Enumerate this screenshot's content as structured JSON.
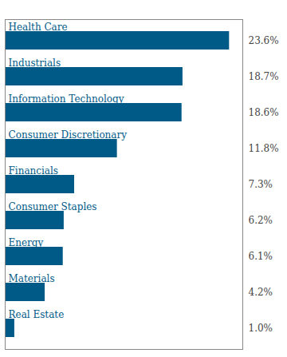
{
  "chart_data": {
    "type": "bar",
    "orientation": "horizontal",
    "categories": [
      "Real Estate",
      "Materials",
      "Energy",
      "Consumer Staples",
      "Financials",
      "Consumer Discretionary",
      "Information Technology",
      "Industrials",
      "Health Care"
    ],
    "values": [
      1.0,
      4.2,
      6.1,
      6.2,
      7.3,
      11.8,
      18.6,
      18.7,
      23.6
    ],
    "value_labels": [
      "1.0%",
      "4.2%",
      "6.1%",
      "6.2%",
      "7.3%",
      "11.8%",
      "18.6%",
      "18.7%",
      "23.6%"
    ],
    "data_labels": true,
    "color": "#005A87",
    "xlim": [
      0,
      25
    ],
    "tick_labels": false,
    "grid": false
  }
}
